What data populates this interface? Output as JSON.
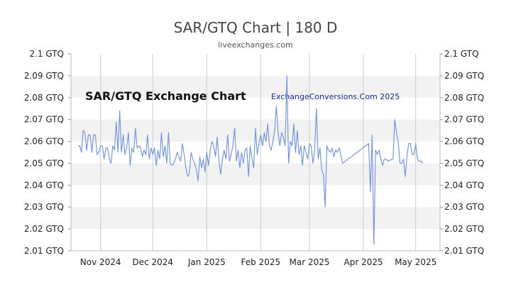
{
  "chart_data": {
    "type": "line",
    "title": "SAR/GTQ Chart | 180 D",
    "subtitle": "liveexchanges.com",
    "inner_title": "SAR/GTQ Exchange Chart",
    "watermark": "ExchangeConversions.Com 2025",
    "ylim": [
      2.01,
      2.1
    ],
    "yticks": [
      {
        "value": 2.1,
        "label": "2.1 GTQ"
      },
      {
        "value": 2.09,
        "label": "2.09 GTQ"
      },
      {
        "value": 2.08,
        "label": "2.08 GTQ"
      },
      {
        "value": 2.07,
        "label": "2.07 GTQ"
      },
      {
        "value": 2.06,
        "label": "2.06 GTQ"
      },
      {
        "value": 2.05,
        "label": "2.05 GTQ"
      },
      {
        "value": 2.04,
        "label": "2.04 GTQ"
      },
      {
        "value": 2.03,
        "label": "2.03 GTQ"
      },
      {
        "value": 2.02,
        "label": "2.02 GTQ"
      },
      {
        "value": 2.01,
        "label": "2.01 GTQ"
      }
    ],
    "xlim": [
      "2024-10-15",
      "2025-05-15"
    ],
    "xticks": [
      {
        "date": "2024-11-01",
        "label": "Nov 2024"
      },
      {
        "date": "2024-12-01",
        "label": "Dec 2024"
      },
      {
        "date": "2025-01-01",
        "label": "Jan 2025"
      },
      {
        "date": "2025-02-01",
        "label": "Feb 2025"
      },
      {
        "date": "2025-03-01",
        "label": "Mar 2025"
      },
      {
        "date": "2025-04-01",
        "label": "Apr 2025"
      },
      {
        "date": "2025-05-01",
        "label": "May 2025"
      }
    ],
    "grid": true,
    "colors": {
      "line": "#6f8fd6",
      "band": "#f2f2f2",
      "grid": "#cccccc"
    },
    "series": [
      {
        "points": [
          [
            "2024-10-19",
            2.058
          ],
          [
            "2024-10-20",
            2.058
          ],
          [
            "2024-10-21",
            2.055
          ],
          [
            "2024-10-22",
            2.065
          ],
          [
            "2024-10-23",
            2.064
          ],
          [
            "2024-10-24",
            2.056
          ],
          [
            "2024-10-25",
            2.063
          ],
          [
            "2024-10-26",
            2.063
          ],
          [
            "2024-10-27",
            2.055
          ],
          [
            "2024-10-28",
            2.063
          ],
          [
            "2024-10-29",
            2.063
          ],
          [
            "2024-10-30",
            2.054
          ],
          [
            "2024-10-31",
            2.055
          ],
          [
            "2024-11-01",
            2.058
          ],
          [
            "2024-11-02",
            2.058
          ],
          [
            "2024-11-03",
            2.052
          ],
          [
            "2024-11-04",
            2.057
          ],
          [
            "2024-11-05",
            2.057
          ],
          [
            "2024-11-06",
            2.052
          ],
          [
            "2024-11-07",
            2.05
          ],
          [
            "2024-11-08",
            2.058
          ],
          [
            "2024-11-09",
            2.056
          ],
          [
            "2024-11-10",
            2.069
          ],
          [
            "2024-11-11",
            2.055
          ],
          [
            "2024-11-12",
            2.074
          ],
          [
            "2024-11-13",
            2.055
          ],
          [
            "2024-11-14",
            2.063
          ],
          [
            "2024-11-15",
            2.054
          ],
          [
            "2024-11-16",
            2.057
          ],
          [
            "2024-11-17",
            2.064
          ],
          [
            "2024-11-18",
            2.049
          ],
          [
            "2024-11-19",
            2.057
          ],
          [
            "2024-11-20",
            2.055
          ],
          [
            "2024-11-21",
            2.066
          ],
          [
            "2024-11-22",
            2.057
          ],
          [
            "2024-11-23",
            2.058
          ],
          [
            "2024-11-24",
            2.057
          ],
          [
            "2024-11-25",
            2.053
          ],
          [
            "2024-11-26",
            2.056
          ],
          [
            "2024-11-27",
            2.054
          ],
          [
            "2024-11-28",
            2.063
          ],
          [
            "2024-11-29",
            2.052
          ],
          [
            "2024-11-30",
            2.057
          ],
          [
            "2024-12-01",
            2.054
          ],
          [
            "2024-12-02",
            2.057
          ],
          [
            "2024-12-03",
            2.049
          ],
          [
            "2024-12-04",
            2.056
          ],
          [
            "2024-12-05",
            2.052
          ],
          [
            "2024-12-06",
            2.064
          ],
          [
            "2024-12-07",
            2.053
          ],
          [
            "2024-12-08",
            2.058
          ],
          [
            "2024-12-09",
            2.05
          ],
          [
            "2024-12-10",
            2.064
          ],
          [
            "2024-12-11",
            2.05
          ],
          [
            "2024-12-12",
            2.049
          ],
          [
            "2024-12-13",
            2.05
          ],
          [
            "2024-12-14",
            2.052
          ],
          [
            "2024-12-15",
            2.055
          ],
          [
            "2024-12-16",
            2.053
          ],
          [
            "2024-12-17",
            2.051
          ],
          [
            "2024-12-18",
            2.059
          ],
          [
            "2024-12-19",
            2.054
          ],
          [
            "2024-12-20",
            2.048
          ],
          [
            "2024-12-21",
            2.044
          ],
          [
            "2024-12-22",
            2.045
          ],
          [
            "2024-12-23",
            2.055
          ],
          [
            "2024-12-24",
            2.052
          ],
          [
            "2024-12-25",
            2.05
          ],
          [
            "2024-12-26",
            2.047
          ],
          [
            "2024-12-27",
            2.042
          ],
          [
            "2024-12-28",
            2.053
          ],
          [
            "2024-12-29",
            2.048
          ],
          [
            "2024-12-30",
            2.052
          ],
          [
            "2024-12-31",
            2.046
          ],
          [
            "2025-01-01",
            2.055
          ],
          [
            "2025-01-02",
            2.049
          ],
          [
            "2025-01-03",
            2.056
          ],
          [
            "2025-01-04",
            2.06
          ],
          [
            "2025-01-05",
            2.058
          ],
          [
            "2025-01-06",
            2.053
          ],
          [
            "2025-01-07",
            2.062
          ],
          [
            "2025-01-08",
            2.051
          ],
          [
            "2025-01-09",
            2.045
          ],
          [
            "2025-01-10",
            2.052
          ],
          [
            "2025-01-11",
            2.056
          ],
          [
            "2025-01-12",
            2.052
          ],
          [
            "2025-01-13",
            2.063
          ],
          [
            "2025-01-14",
            2.051
          ],
          [
            "2025-01-15",
            2.054
          ],
          [
            "2025-01-16",
            2.058
          ],
          [
            "2025-01-17",
            2.066
          ],
          [
            "2025-01-18",
            2.051
          ],
          [
            "2025-01-19",
            2.056
          ],
          [
            "2025-01-20",
            2.048
          ],
          [
            "2025-01-21",
            2.055
          ],
          [
            "2025-01-22",
            2.05
          ],
          [
            "2025-01-23",
            2.056
          ],
          [
            "2025-01-24",
            2.057
          ],
          [
            "2025-01-25",
            2.044
          ],
          [
            "2025-01-26",
            2.058
          ],
          [
            "2025-01-27",
            2.052
          ],
          [
            "2025-01-28",
            2.048
          ],
          [
            "2025-01-29",
            2.066
          ],
          [
            "2025-01-30",
            2.054
          ],
          [
            "2025-01-31",
            2.059
          ],
          [
            "2025-02-01",
            2.063
          ],
          [
            "2025-02-02",
            2.058
          ],
          [
            "2025-02-03",
            2.064
          ],
          [
            "2025-02-04",
            2.06
          ],
          [
            "2025-02-05",
            2.068
          ],
          [
            "2025-02-06",
            2.058
          ],
          [
            "2025-02-07",
            2.056
          ],
          [
            "2025-02-08",
            2.06
          ],
          [
            "2025-02-09",
            2.065
          ],
          [
            "2025-02-10",
            2.076
          ],
          [
            "2025-02-11",
            2.064
          ],
          [
            "2025-02-12",
            2.058
          ],
          [
            "2025-02-13",
            2.064
          ],
          [
            "2025-02-14",
            2.062
          ],
          [
            "2025-02-15",
            2.058
          ],
          [
            "2025-02-16",
            2.09
          ],
          [
            "2025-02-17",
            2.05
          ],
          [
            "2025-02-18",
            2.06
          ],
          [
            "2025-02-19",
            2.058
          ],
          [
            "2025-02-20",
            2.068
          ],
          [
            "2025-02-21",
            2.055
          ],
          [
            "2025-02-22",
            2.065
          ],
          [
            "2025-02-23",
            2.054
          ],
          [
            "2025-02-24",
            2.058
          ],
          [
            "2025-02-25",
            2.049
          ],
          [
            "2025-02-26",
            2.058
          ],
          [
            "2025-02-27",
            2.055
          ],
          [
            "2025-02-28",
            2.052
          ],
          [
            "2025-03-01",
            2.059
          ],
          [
            "2025-03-02",
            2.058
          ],
          [
            "2025-03-03",
            2.05
          ],
          [
            "2025-03-04",
            2.056
          ],
          [
            "2025-03-05",
            2.075
          ],
          [
            "2025-03-06",
            2.052
          ],
          [
            "2025-03-07",
            2.057
          ],
          [
            "2025-03-08",
            2.047
          ],
          [
            "2025-03-09",
            2.045
          ],
          [
            "2025-03-10",
            2.03
          ],
          [
            "2025-03-11",
            2.058
          ],
          [
            "2025-03-12",
            2.056
          ],
          [
            "2025-03-13",
            2.055
          ],
          [
            "2025-03-14",
            2.057
          ],
          [
            "2025-03-15",
            2.053
          ],
          [
            "2025-03-16",
            2.056
          ],
          [
            "2025-03-17",
            2.055
          ],
          [
            "2025-03-18",
            2.057
          ],
          [
            "2025-03-19",
            2.054
          ],
          [
            "2025-03-20",
            2.05
          ],
          [
            "2025-04-04",
            2.059
          ],
          [
            "2025-04-05",
            2.037
          ],
          [
            "2025-04-06",
            2.063
          ],
          [
            "2025-04-07",
            2.013
          ],
          [
            "2025-04-08",
            2.056
          ],
          [
            "2025-04-09",
            2.054
          ],
          [
            "2025-04-10",
            2.056
          ],
          [
            "2025-04-11",
            2.052
          ],
          [
            "2025-04-12",
            2.049
          ],
          [
            "2025-04-13",
            2.052
          ],
          [
            "2025-04-14",
            2.052
          ],
          [
            "2025-04-15",
            2.051
          ],
          [
            "2025-04-18",
            2.052
          ],
          [
            "2025-04-19",
            2.07
          ],
          [
            "2025-04-20",
            2.064
          ],
          [
            "2025-04-21",
            2.06
          ],
          [
            "2025-04-22",
            2.05
          ],
          [
            "2025-04-23",
            2.05
          ],
          [
            "2025-04-24",
            2.052
          ],
          [
            "2025-04-25",
            2.044
          ],
          [
            "2025-04-26",
            2.053
          ],
          [
            "2025-04-27",
            2.059
          ],
          [
            "2025-04-28",
            2.059
          ],
          [
            "2025-04-29",
            2.054
          ],
          [
            "2025-04-30",
            2.054
          ],
          [
            "2025-05-01",
            2.059
          ],
          [
            "2025-05-02",
            2.052
          ],
          [
            "2025-05-03",
            2.051
          ],
          [
            "2025-05-04",
            2.051
          ],
          [
            "2025-05-05",
            2.05
          ]
        ]
      }
    ]
  }
}
